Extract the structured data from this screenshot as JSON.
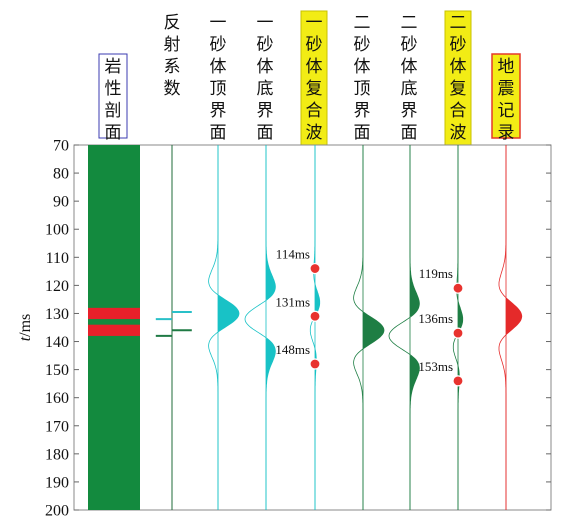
{
  "chart_data": {
    "type": "line",
    "title": "",
    "ylabel_var": "t",
    "ylabel_unit": "/ms",
    "ylim": [
      70,
      200
    ],
    "yticks": [
      70,
      80,
      90,
      100,
      110,
      120,
      130,
      140,
      150,
      160,
      170,
      180,
      190,
      200
    ],
    "columns": [
      {
        "key": "lith",
        "header": "岩性剖面",
        "header_style": "box"
      },
      {
        "key": "refl",
        "header": "反射系数",
        "header_style": "none"
      },
      {
        "key": "s1top",
        "header": "一砂体顶界面",
        "header_style": "none"
      },
      {
        "key": "s1bot",
        "header": "一砂体底界面",
        "header_style": "none"
      },
      {
        "key": "s1comp",
        "header": "一砂体复合波",
        "header_style": "yellow"
      },
      {
        "key": "s2top",
        "header": "二砂体顶界面",
        "header_style": "none"
      },
      {
        "key": "s2bot",
        "header": "二砂体底界面",
        "header_style": "none"
      },
      {
        "key": "s2comp",
        "header": "二砂体复合波",
        "header_style": "yellow"
      },
      {
        "key": "seis",
        "header": "地震记录",
        "header_style": "yellow-red"
      }
    ],
    "lithology": {
      "background_color": "#138a3e",
      "sand_beds": [
        {
          "top": 128,
          "bottom": 132,
          "color": "#e8202a"
        },
        {
          "top": 134,
          "bottom": 138,
          "color": "#e8202a"
        }
      ]
    },
    "reflection_coefficients": [
      {
        "t": 129.5,
        "r": 0.55,
        "color": "#29c0c8"
      },
      {
        "t": 132,
        "r": -0.45,
        "color": "#29c0c8"
      },
      {
        "t": 136,
        "r": 0.55,
        "color": "#1f7a44"
      },
      {
        "t": 138,
        "r": -0.45,
        "color": "#1f7a44"
      }
    ],
    "series": [
      {
        "column": "s1top",
        "center": 130,
        "amplitude": 1.0,
        "color": "#18c2c6",
        "fill": true
      },
      {
        "column": "s1bot",
        "center": 132,
        "amplitude": -1.0,
        "color": "#18c2c6",
        "fill": true
      },
      {
        "column": "s1comp",
        "center_a": 130,
        "center_b": 132,
        "amplitude": 0.55,
        "color": "#18c2c6",
        "fill": true
      },
      {
        "column": "s2top",
        "center": 136,
        "amplitude": 1.0,
        "color": "#1e7e44",
        "fill": true
      },
      {
        "column": "s2bot",
        "center": 138,
        "amplitude": -1.0,
        "color": "#1e7e44",
        "fill": true
      },
      {
        "column": "s2comp",
        "center_a": 136,
        "center_b": 138,
        "amplitude": 0.55,
        "color": "#1e7e44",
        "fill": true
      },
      {
        "column": "seis",
        "center": 131,
        "amplitude": 0.75,
        "color": "#e52a2a",
        "fill": true
      }
    ],
    "annotations": [
      {
        "column": "s1comp",
        "t": 114,
        "label": "114ms"
      },
      {
        "column": "s1comp",
        "t": 131,
        "label": "131ms"
      },
      {
        "column": "s1comp",
        "t": 148,
        "label": "148ms"
      },
      {
        "column": "s2comp",
        "t": 121,
        "label": "119ms"
      },
      {
        "column": "s2comp",
        "t": 137,
        "label": "136ms"
      },
      {
        "column": "s2comp",
        "t": 154,
        "label": "153ms"
      }
    ],
    "marker_color": "#e8332e"
  }
}
